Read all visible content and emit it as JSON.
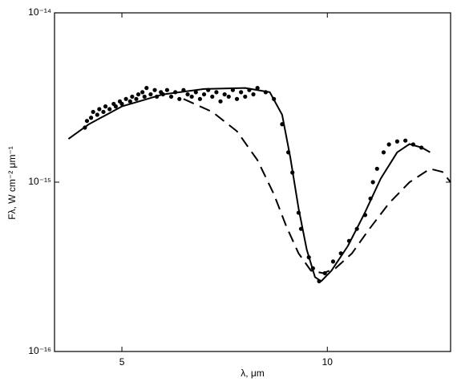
{
  "chart_data": {
    "type": "scatter",
    "xlabel": "λ, μm",
    "ylabel": "Fλ, W cm⁻² μm⁻¹",
    "log_y": true,
    "xlim": [
      3.36,
      13.0
    ],
    "xticks": [
      5,
      10
    ],
    "ylim": [
      1e-16,
      1e-14
    ],
    "yticks": [
      {
        "value": 1e-16,
        "label": "10⁻¹⁶"
      },
      {
        "value": 1e-15,
        "label": "10⁻¹⁵"
      },
      {
        "value": 1e-14,
        "label": "10⁻¹⁴"
      }
    ],
    "series": [
      {
        "style": "points",
        "color": "#000",
        "x": [
          4.1,
          4.15,
          4.25,
          4.3,
          4.4,
          4.45,
          4.55,
          4.6,
          4.7,
          4.8,
          4.85,
          4.95,
          5.0,
          5.1,
          5.2,
          5.25,
          5.35,
          5.4,
          5.5,
          5.55,
          5.6,
          5.7,
          5.8,
          5.85,
          5.95,
          6.0,
          6.1,
          6.2,
          6.3,
          6.4,
          6.5,
          6.6,
          6.7,
          6.8,
          6.9,
          7.0,
          7.1,
          7.2,
          7.3,
          7.4,
          7.5,
          7.6,
          7.7,
          7.8,
          7.9,
          8.0,
          8.1,
          8.2,
          8.3,
          8.5,
          8.7,
          8.9,
          9.05,
          9.15,
          9.3,
          9.36,
          9.55,
          9.65,
          9.8,
          9.94,
          10.14,
          10.33,
          10.53,
          10.72,
          10.92,
          11.05,
          11.11,
          11.21,
          11.37,
          11.5,
          11.7,
          11.9,
          12.09,
          12.29
        ],
        "values": [
          2.1e-15,
          2.3e-15,
          2.4e-15,
          2.6e-15,
          2.5e-15,
          2.7e-15,
          2.6e-15,
          2.8e-15,
          2.7e-15,
          2.9e-15,
          2.8e-15,
          3e-15,
          2.9e-15,
          3.1e-15,
          3e-15,
          3.2e-15,
          3.1e-15,
          3.3e-15,
          3.4e-15,
          3.2e-15,
          3.6e-15,
          3.3e-15,
          3.5e-15,
          3.2e-15,
          3.4e-15,
          3.3e-15,
          3.5e-15,
          3.2e-15,
          3.4e-15,
          3.1e-15,
          3.5e-15,
          3.3e-15,
          3.2e-15,
          3.4e-15,
          3.1e-15,
          3.3e-15,
          3.5e-15,
          3.2e-15,
          3.4e-15,
          3e-15,
          3.3e-15,
          3.2e-15,
          3.5e-15,
          3.1e-15,
          3.4e-15,
          3.2e-15,
          3.5e-15,
          3.3e-15,
          3.6e-15,
          3.4e-15,
          3.1e-15,
          2.2e-15,
          1.5e-15,
          1.14e-15,
          6.6e-16,
          5.3e-16,
          3.6e-16,
          3.1e-16,
          2.6e-16,
          2.9e-16,
          3.4e-16,
          3.8e-16,
          4.5e-16,
          5.3e-16,
          6.4e-16,
          8e-16,
          1e-15,
          1.2e-15,
          1.5e-15,
          1.67e-15,
          1.74e-15,
          1.76e-15,
          1.67e-15,
          1.6e-15
        ]
      },
      {
        "style": "solid",
        "color": "#000",
        "x": [
          3.7,
          4.2,
          5.0,
          6.0,
          7.0,
          8.0,
          8.6,
          8.9,
          9.1,
          9.3,
          9.5,
          9.7,
          9.85,
          10.1,
          10.5,
          10.9,
          11.3,
          11.7,
          12.0,
          12.3,
          12.5
        ],
        "values": [
          1.8e-15,
          2.2e-15,
          2.8e-15,
          3.3e-15,
          3.55e-15,
          3.6e-15,
          3.4e-15,
          2.5e-15,
          1.4e-15,
          7e-16,
          4e-16,
          2.75e-16,
          2.6e-16,
          3e-16,
          4.2e-16,
          6.5e-16,
          1.05e-15,
          1.5e-15,
          1.68e-15,
          1.6e-15,
          1.5e-15
        ]
      },
      {
        "style": "dashed",
        "color": "#000",
        "x": [
          6.5,
          7.2,
          7.8,
          8.3,
          8.7,
          9.0,
          9.3,
          9.6,
          9.9,
          10.2,
          10.6,
          11.0,
          11.5,
          12.0,
          12.5,
          12.8,
          13.0
        ],
        "values": [
          3.1e-15,
          2.6e-15,
          2e-15,
          1.35e-15,
          8.5e-16,
          5.5e-16,
          3.8e-16,
          3e-16,
          2.9e-16,
          3.1e-16,
          3.8e-16,
          5.2e-16,
          7.5e-16,
          1e-15,
          1.2e-15,
          1.15e-15,
          1e-15
        ]
      }
    ]
  }
}
